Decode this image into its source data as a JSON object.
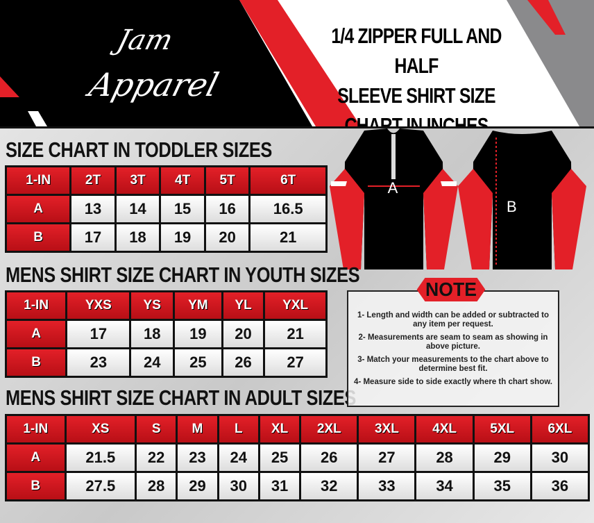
{
  "brand": {
    "line1": "Jam",
    "line2": "Apparel"
  },
  "title": [
    "1/4 ZIPPER FULL AND HALF",
    "SLEEVE  SHIRT SIZE",
    "CHART IN INCHES"
  ],
  "colors": {
    "red": "#e32028",
    "black": "#000000",
    "gray": "#8a8a8c"
  },
  "shirt_labels": {
    "width": "A",
    "length": "B"
  },
  "toddler": {
    "heading": "SIZE CHART IN TODDLER  SIZES",
    "headers": [
      "1-IN",
      "2T",
      "3T",
      "4T",
      "5T",
      "6T"
    ],
    "rows": [
      [
        "A",
        "13",
        "14",
        "15",
        "16",
        "16.5"
      ],
      [
        "B",
        "17",
        "18",
        "19",
        "20",
        "21"
      ]
    ]
  },
  "youth": {
    "heading": "MENS SHIRT SIZE CHART IN YOUTH  SIZES",
    "headers": [
      "1-IN",
      "YXS",
      "YS",
      "YM",
      "YL",
      "YXL"
    ],
    "rows": [
      [
        "A",
        "17",
        "18",
        "19",
        "20",
        "21"
      ],
      [
        "B",
        "23",
        "24",
        "25",
        "26",
        "27"
      ]
    ]
  },
  "adult": {
    "heading": "MENS SHIRT SIZE CHART IN ADULT SIZES",
    "headers": [
      "1-IN",
      "XS",
      "S",
      "M",
      "L",
      "XL",
      "2XL",
      "3XL",
      "4XL",
      "5XL",
      "6XL"
    ],
    "rows": [
      [
        "A",
        "21.5",
        "22",
        "23",
        "24",
        "25",
        "26",
        "27",
        "28",
        "29",
        "30"
      ],
      [
        "B",
        "27.5",
        "28",
        "29",
        "30",
        "31",
        "32",
        "33",
        "34",
        "35",
        "36"
      ]
    ]
  },
  "note": {
    "title": "NOTE",
    "items": [
      "1- Length and width can be added or subtracted to any item per request.",
      "2- Measurements are seam to seam  as showing in above picture.",
      "3- Match your measurements to the chart above to determine best fit.",
      "4- Measure side to side exactly where th chart show."
    ]
  }
}
